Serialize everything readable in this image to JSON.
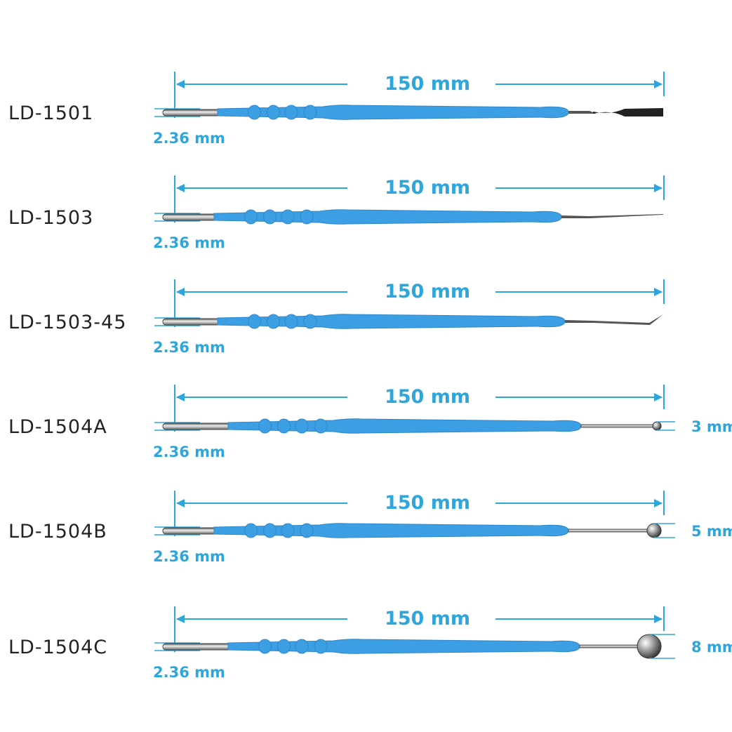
{
  "items": [
    {
      "model": "LD-1501",
      "length": "150 mm",
      "diameter": "2.36 mm"
    },
    {
      "model": "LD-1503",
      "length": "150 mm",
      "diameter": "2.36 mm"
    },
    {
      "model": "LD-1503-45",
      "length": "150 mm",
      "diameter": "2.36 mm"
    },
    {
      "model": "LD-1504A",
      "length": "150 mm",
      "diameter": "2.36 mm",
      "tip": "3 mm"
    },
    {
      "model": "LD-1504B",
      "length": "150 mm",
      "diameter": "2.36 mm",
      "tip": "5 mm"
    },
    {
      "model": "LD-1504C",
      "length": "150 mm",
      "diameter": "2.36 mm",
      "tip": "8 mm"
    }
  ]
}
